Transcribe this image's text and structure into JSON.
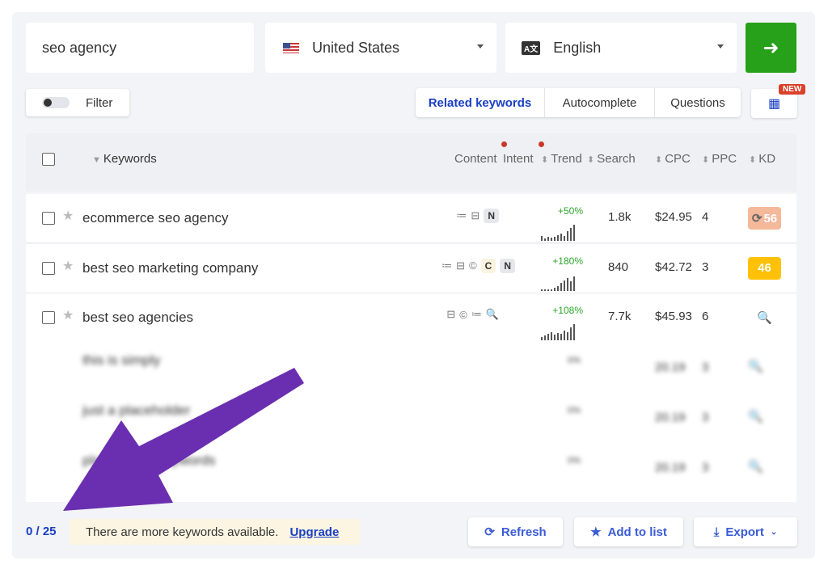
{
  "search": {
    "query": "seo agency",
    "country": "United States",
    "language": "English",
    "go_icon": "arrow-right-icon",
    "accent": "#27a01a"
  },
  "filter": {
    "label": "Filter"
  },
  "tabs": [
    {
      "label": "Related keywords",
      "active": true
    },
    {
      "label": "Autocomplete"
    },
    {
      "label": "Questions"
    }
  ],
  "new_badge": "NEW",
  "columns": {
    "keywords": "Keywords",
    "content": "Content",
    "intent": "Intent",
    "trend": "Trend",
    "search": "Search",
    "cpc": "CPC",
    "ppc": "PPC",
    "kd": "KD"
  },
  "rows": [
    {
      "keyword": "ecommerce seo agency",
      "intent": [
        "N"
      ],
      "trend": "+50%",
      "search": "1.8k",
      "cpc": "$24.95",
      "ppc": "4",
      "kd": "56",
      "kd_color": "#f4b89a",
      "bars": [
        6,
        3,
        5,
        4,
        5,
        7,
        9,
        6,
        12,
        16,
        20
      ]
    },
    {
      "keyword": "best seo marketing company",
      "intent": [
        "C",
        "N"
      ],
      "trend": "+180%",
      "search": "840",
      "cpc": "$42.72",
      "ppc": "3",
      "kd": "46",
      "kd_color": "#ffc107",
      "bars": [
        2,
        2,
        2,
        2,
        4,
        6,
        10,
        13,
        16,
        12,
        18
      ]
    },
    {
      "keyword": "best seo agencies",
      "intent": [],
      "trend": "+108%",
      "search": "7.7k",
      "cpc": "$45.93",
      "ppc": "6",
      "kd": "",
      "bars": [
        4,
        6,
        8,
        10,
        7,
        9,
        8,
        12,
        10,
        16,
        20
      ]
    }
  ],
  "blurred_rows": [
    {
      "keyword": "this is simply",
      "trend": "0%",
      "cpc": "20.19",
      "ppc": "3"
    },
    {
      "keyword": "just a placeholder",
      "trend": "0%",
      "cpc": "20.19",
      "ppc": "3"
    },
    {
      "keyword": "placeholder keywords",
      "trend": "0%",
      "cpc": "20.19",
      "ppc": "3"
    }
  ],
  "footer": {
    "count": "0 / 25",
    "notice": "There are more keywords available.",
    "upgrade": "Upgrade",
    "refresh": "Refresh",
    "add_to_list": "Add to list",
    "export": "Export"
  },
  "annotation_color": "#6a2fb0"
}
